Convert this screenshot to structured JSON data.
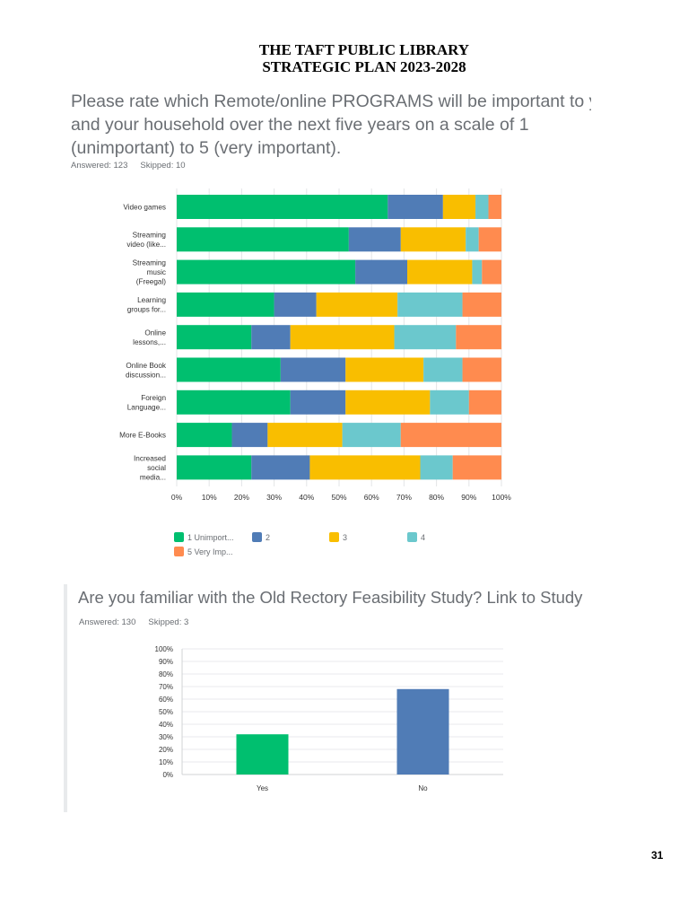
{
  "header": {
    "line1": "THE TAFT PUBLIC LIBRARY",
    "line2": "STRATEGIC PLAN 2023-2028"
  },
  "q1": {
    "question_line1": "Please rate which Remote/online PROGRAMS will be important to you",
    "question_line2": "and your household over the next five years on a scale of 1",
    "question_line3": "(unimportant) to 5 (very important).",
    "answered": "Answered: 123",
    "skipped": "Skipped: 10"
  },
  "q2": {
    "question": "Are you familiar with the Old Rectory Feasibility Study? Link to Study",
    "answered": "Answered: 130",
    "skipped": "Skipped: 3"
  },
  "page_number": "31",
  "chart_data": [
    {
      "type": "bar",
      "orientation": "horizontal",
      "stacked": true,
      "categories": [
        [
          "Video games"
        ],
        [
          "Streaming",
          "video (like..."
        ],
        [
          "Streaming",
          "music",
          "(Freegal)"
        ],
        [
          "Learning",
          "groups for..."
        ],
        [
          "Online",
          "lessons,..."
        ],
        [
          "Online Book",
          "discussion..."
        ],
        [
          "Foreign",
          "Language..."
        ],
        [
          "More E-Books"
        ],
        [
          "Increased",
          "social",
          "media..."
        ]
      ],
      "series": [
        {
          "name": "1 Unimport...",
          "color": "#00bf6f",
          "values": [
            65,
            53,
            55,
            30,
            23,
            32,
            35,
            17,
            23
          ]
        },
        {
          "name": "2",
          "color": "#507cb6",
          "values": [
            17,
            16,
            16,
            13,
            12,
            20,
            17,
            11,
            18
          ]
        },
        {
          "name": "3",
          "color": "#f9be00",
          "values": [
            10,
            20,
            20,
            25,
            32,
            24,
            26,
            23,
            34
          ]
        },
        {
          "name": "4",
          "color": "#6bc8cd",
          "values": [
            4,
            4,
            3,
            20,
            19,
            12,
            12,
            18,
            10
          ]
        },
        {
          "name": "5 Very Imp...",
          "color": "#ff8b4f",
          "values": [
            4,
            7,
            6,
            12,
            14,
            12,
            10,
            31,
            15
          ]
        }
      ],
      "xlim": [
        0,
        100
      ],
      "x_ticks": [
        "0%",
        "10%",
        "20%",
        "30%",
        "40%",
        "50%",
        "60%",
        "70%",
        "80%",
        "90%",
        "100%"
      ],
      "grid": true,
      "legend_position": "bottom-left"
    },
    {
      "type": "bar",
      "categories": [
        "Yes",
        "No"
      ],
      "values": [
        32,
        68
      ],
      "colors": [
        "#00bf6f",
        "#507cb6"
      ],
      "ylim": [
        0,
        100
      ],
      "y_ticks": [
        "0%",
        "10%",
        "20%",
        "30%",
        "40%",
        "50%",
        "60%",
        "70%",
        "80%",
        "90%",
        "100%"
      ],
      "grid": true
    }
  ]
}
